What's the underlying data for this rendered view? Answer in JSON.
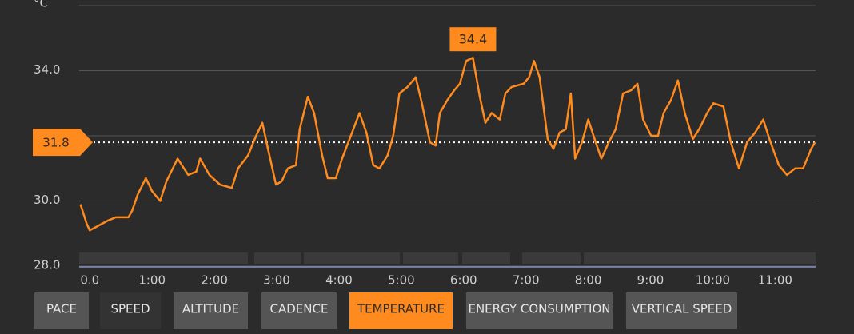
{
  "chart_data": {
    "type": "line",
    "y_label": "°C",
    "color": "#ff8a1e",
    "x": [
      -0.15,
      -0.05,
      0.0,
      0.1,
      0.29,
      0.42,
      0.62,
      0.68,
      0.77,
      0.9,
      1.0,
      1.13,
      1.23,
      1.41,
      1.58,
      1.71,
      1.77,
      1.92,
      2.09,
      2.28,
      2.38,
      2.54,
      2.67,
      2.77,
      2.86,
      2.99,
      3.08,
      3.18,
      3.31,
      3.37,
      3.5,
      3.6,
      3.73,
      3.82,
      3.95,
      4.05,
      4.21,
      4.33,
      4.44,
      4.55,
      4.65,
      4.78,
      4.87,
      4.97,
      5.1,
      5.23,
      5.33,
      5.46,
      5.55,
      5.62,
      5.74,
      5.85,
      5.94,
      6.04,
      6.15,
      6.26,
      6.35,
      6.45,
      6.58,
      6.67,
      6.77,
      6.96,
      7.05,
      7.13,
      7.22,
      7.35,
      7.44,
      7.54,
      7.64,
      7.72,
      7.79,
      7.9,
      8.0,
      8.12,
      8.21,
      8.33,
      8.44,
      8.56,
      8.69,
      8.79,
      8.88,
      9.01,
      9.12,
      9.21,
      9.33,
      9.44,
      9.55,
      9.68,
      9.78,
      9.91,
      10.01,
      10.17,
      10.29,
      10.42,
      10.55,
      10.68,
      10.81,
      10.91,
      11.06,
      11.19,
      11.32,
      11.45,
      11.58,
      11.64
    ],
    "values": [
      29.9,
      29.3,
      29.1,
      29.2,
      29.4,
      29.5,
      29.5,
      29.7,
      30.2,
      30.7,
      30.3,
      30.0,
      30.6,
      31.3,
      30.8,
      30.9,
      31.3,
      30.8,
      30.5,
      30.4,
      31.0,
      31.4,
      32.0,
      32.4,
      31.6,
      30.5,
      30.6,
      31.0,
      31.1,
      32.2,
      33.2,
      32.7,
      31.4,
      30.7,
      30.7,
      31.3,
      32.1,
      32.7,
      32.1,
      31.1,
      31.0,
      31.4,
      32.0,
      33.3,
      33.5,
      33.8,
      33.0,
      31.8,
      31.7,
      32.7,
      33.1,
      33.4,
      33.6,
      34.3,
      34.4,
      33.2,
      32.4,
      32.7,
      32.5,
      33.3,
      33.5,
      33.6,
      33.8,
      34.3,
      33.8,
      31.9,
      31.6,
      32.1,
      32.2,
      33.3,
      31.3,
      31.8,
      32.5,
      31.8,
      31.3,
      31.8,
      32.2,
      33.3,
      33.4,
      33.6,
      32.5,
      32.0,
      32.0,
      32.7,
      33.1,
      33.7,
      32.7,
      31.9,
      32.2,
      32.7,
      33.0,
      32.9,
      31.8,
      31.0,
      31.8,
      32.1,
      32.5,
      31.9,
      31.1,
      30.8,
      31.0,
      31.0,
      31.6,
      31.8
    ],
    "xlim": [
      -0.17,
      11.65
    ],
    "xticks": [
      {
        "value": 0,
        "label": "0.0"
      },
      {
        "value": 1,
        "label": "1:00"
      },
      {
        "value": 2,
        "label": "2:00"
      },
      {
        "value": 3,
        "label": "3:00"
      },
      {
        "value": 4,
        "label": "4:00"
      },
      {
        "value": 5,
        "label": "5:00"
      },
      {
        "value": 6,
        "label": "6:00"
      },
      {
        "value": 7,
        "label": "7:00"
      },
      {
        "value": 8,
        "label": "8:00"
      },
      {
        "value": 9,
        "label": "9:00"
      },
      {
        "value": 10,
        "label": "10:00"
      },
      {
        "value": 11,
        "label": "11:00"
      }
    ],
    "ylim": [
      28,
      36
    ],
    "yticks": [
      {
        "value": 28,
        "label": "28.0"
      },
      {
        "value": 30,
        "label": "30.0"
      },
      {
        "value": 32,
        "label": null
      },
      {
        "value": 34,
        "label": "34.0"
      },
      {
        "value": 36,
        "label": null
      }
    ],
    "grid": true,
    "average": {
      "value": 31.8,
      "label": "31.8"
    },
    "max_label": {
      "value": 34.4,
      "label": "34.4"
    }
  },
  "tabs": [
    "PACE",
    "SPEED",
    "ALTITUDE",
    "CADENCE",
    "TEMPERATURE",
    "ENERGY CONSUMPTION",
    "VERTICAL SPEED"
  ],
  "selected_tab_index": 4
}
